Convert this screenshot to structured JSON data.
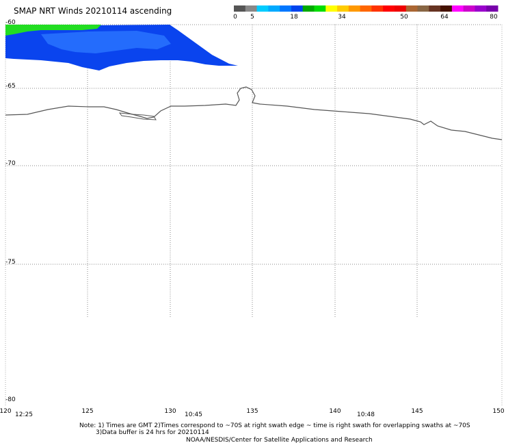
{
  "title": "SMAP NRT Winds 20210114 ascending",
  "color_scale": {
    "labels": [
      "0",
      "5",
      "18",
      "34",
      "50",
      "64",
      "80"
    ],
    "segments": [
      "#555555",
      "#888888",
      "#00ccff",
      "#00aaff",
      "#0077ff",
      "#0044ee",
      "#00aa00",
      "#00dd00",
      "#ffff00",
      "#ffcc00",
      "#ff9900",
      "#ff6600",
      "#ff3300",
      "#ff0000",
      "#ee0000",
      "#aa6633",
      "#886644",
      "#663322",
      "#441100",
      "#ff00ff",
      "#cc00cc",
      "#9900cc",
      "#7700aa"
    ]
  },
  "map": {
    "lat_labels": [
      "-60",
      "-65",
      "-70",
      "-75",
      "-80"
    ],
    "lon_labels": [
      "120",
      "125",
      "130",
      "135",
      "140",
      "145",
      "150"
    ],
    "times": [
      "12:25",
      "10:45",
      "10:48"
    ],
    "colors": {
      "wind_low": "#0a44ee",
      "wind_mid": "#1a66ff",
      "wind_high": "#22dd22",
      "coast": "#555555",
      "grid": "#888888"
    }
  },
  "notes": {
    "line1": "Note: 1) Times are GMT 2)Times correspond to ~70S at right swath edge ~ time is right swath for overlapping swaths at ~70S",
    "line2": "3)Data buffer is 24 hrs for 20210114",
    "line3": "NOAA/NESDIS/Center for Satellite Applications and Research"
  }
}
